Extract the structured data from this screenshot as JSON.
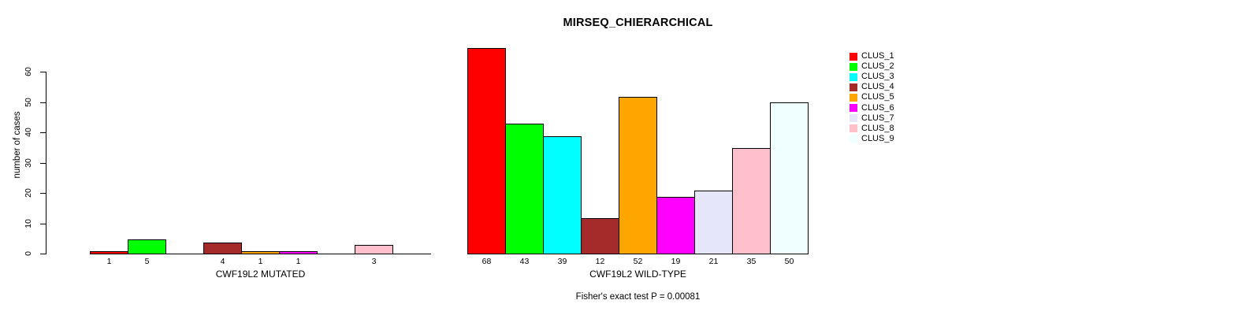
{
  "chart_data": {
    "type": "bar",
    "title": "MIRSEQ_CHIERARCHICAL",
    "ylabel": "number of cases",
    "ylim": [
      0,
      68
    ],
    "yticks": [
      0,
      10,
      20,
      30,
      40,
      50,
      60
    ],
    "grid": false,
    "legend_position": "right",
    "clusters": [
      {
        "label": "CLUS_1",
        "color": "#FF0000"
      },
      {
        "label": "CLUS_2",
        "color": "#00FF00"
      },
      {
        "label": "CLUS_3",
        "color": "#00FFFF"
      },
      {
        "label": "CLUS_4",
        "color": "#A52A2A"
      },
      {
        "label": "CLUS_5",
        "color": "#FFA500"
      },
      {
        "label": "CLUS_6",
        "color": "#FF00FF"
      },
      {
        "label": "CLUS_7",
        "color": "#E6E6FA"
      },
      {
        "label": "CLUS_8",
        "color": "#FFC0CB"
      },
      {
        "label": "CLUS_9",
        "color": "#F0FFFF"
      }
    ],
    "panels": [
      {
        "xlabel": "CWF19L2 MUTATED",
        "values": [
          1,
          5,
          0,
          4,
          1,
          1,
          0,
          3,
          0
        ],
        "bar_labels": [
          "1",
          "5",
          "",
          "4",
          "1",
          "1",
          "",
          "3",
          ""
        ]
      },
      {
        "xlabel": "CWF19L2 WILD-TYPE",
        "values": [
          68,
          43,
          39,
          12,
          52,
          19,
          21,
          35,
          50
        ],
        "bar_labels": [
          "68",
          "43",
          "39",
          "12",
          "52",
          "19",
          "21",
          "35",
          "50"
        ]
      }
    ],
    "annotation": "Fisher's exact test P = 0.00081"
  }
}
